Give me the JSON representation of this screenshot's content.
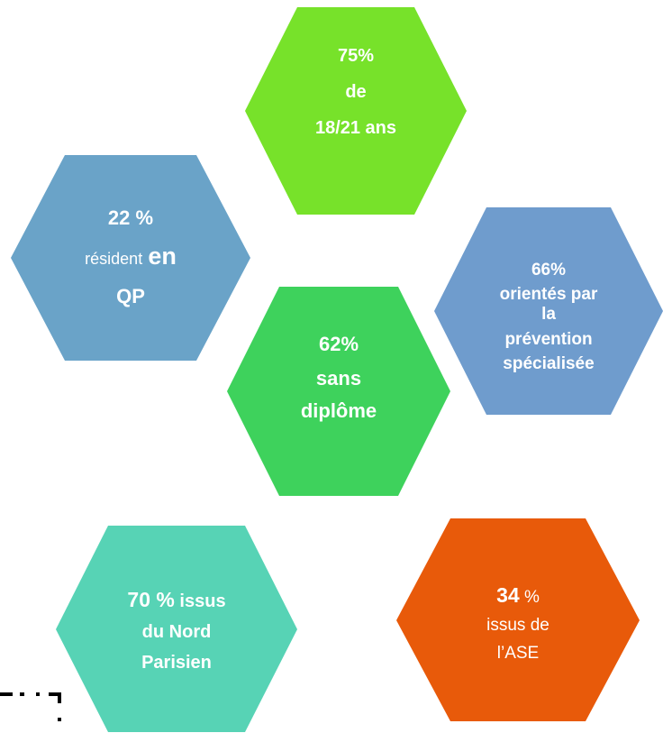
{
  "nodes": [
    {
      "lines": [
        [
          "75%"
        ],
        [
          "de"
        ],
        [
          "18/21 ans"
        ]
      ]
    },
    {
      "lines": [
        [
          "22 %"
        ],
        [
          "résident",
          "en"
        ],
        [
          "QP"
        ]
      ]
    },
    {
      "lines": [
        [
          "66%"
        ],
        [
          "orientés par"
        ],
        [
          "la"
        ],
        [
          "prévention"
        ],
        [
          "spécialisée"
        ]
      ]
    },
    {
      "lines": [
        [
          "62%"
        ],
        [
          "sans"
        ],
        [
          "diplôme"
        ]
      ]
    },
    {
      "lines": [
        [
          "70 %",
          "issus"
        ],
        [
          "du Nord"
        ],
        [
          "Parisien"
        ]
      ]
    },
    {
      "lines": [
        [
          "34",
          "%"
        ],
        [
          "issus de"
        ],
        [
          "l’ASE"
        ]
      ]
    }
  ]
}
